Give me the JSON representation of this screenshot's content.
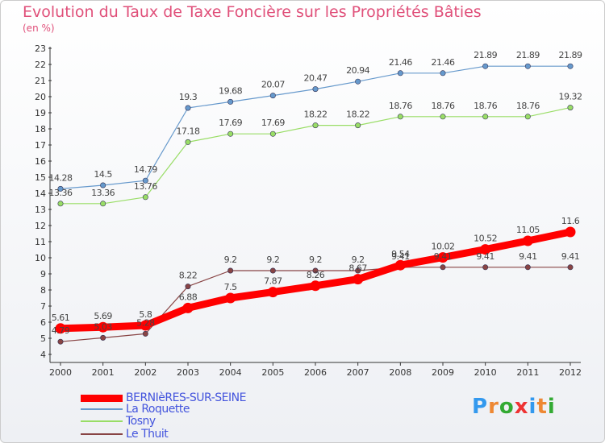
{
  "chart_data": {
    "type": "line",
    "title": "Evolution du Taux de Taxe Foncière sur les Propriétés Bâties",
    "subtitle": "(en %)",
    "x": [
      "2000",
      "2001",
      "2002",
      "2003",
      "2004",
      "2005",
      "2006",
      "2007",
      "2008",
      "2009",
      "2010",
      "2011",
      "2012"
    ],
    "ylim": [
      4,
      23
    ],
    "yticks": [
      4,
      5,
      6,
      7,
      8,
      9,
      10,
      11,
      12,
      13,
      14,
      15,
      16,
      17,
      18,
      19,
      20,
      21,
      22,
      23
    ],
    "grid": false,
    "legend_position": "bottom-left",
    "series": [
      {
        "name": "BERNIèRES-SUR-SEINE",
        "color": "#ff0000",
        "labels": [
          "5.61",
          "5.69",
          "5.8",
          "6.88",
          "7.5",
          "7.87",
          "8.26",
          "8.67",
          "9.54",
          "10.02",
          "10.52",
          "11.05",
          "11.6"
        ],
        "values": [
          5.61,
          5.69,
          5.8,
          6.88,
          7.5,
          7.87,
          8.26,
          8.67,
          9.54,
          10.02,
          10.52,
          11.05,
          11.6
        ]
      },
      {
        "name": "La Roquette",
        "color": "#6699cc",
        "labels": [
          "14.28",
          "14.5",
          "14.79",
          "19.3",
          "19.68",
          "20.07",
          "20.47",
          "20.94",
          "21.46",
          "21.46",
          "21.89",
          "21.89",
          "21.89"
        ],
        "values": [
          14.28,
          14.5,
          14.79,
          19.3,
          19.68,
          20.07,
          20.47,
          20.94,
          21.46,
          21.46,
          21.89,
          21.89,
          21.89
        ]
      },
      {
        "name": "Tosny",
        "color": "#99dd66",
        "labels": [
          "13.36",
          "13.36",
          "13.76",
          "17.18",
          "17.69",
          "17.69",
          "18.22",
          "18.22",
          "18.76",
          "18.76",
          "18.76",
          "18.76",
          "19.32"
        ],
        "values": [
          13.36,
          13.36,
          13.76,
          17.18,
          17.69,
          17.69,
          18.22,
          18.22,
          18.76,
          18.76,
          18.76,
          18.76,
          19.32
        ]
      },
      {
        "name": "Le Thuit",
        "color": "#884444",
        "labels": [
          "4.79",
          "5.03",
          "5.28",
          "8.22",
          "9.2",
          "9.2",
          "9.2",
          "9.2",
          "9.41",
          "9.41",
          "9.41",
          "9.41",
          "9.41"
        ],
        "values": [
          4.79,
          5.03,
          5.28,
          8.22,
          9.2,
          9.2,
          9.2,
          9.2,
          9.41,
          9.41,
          9.41,
          9.41,
          9.41
        ]
      }
    ]
  },
  "logo": {
    "letters": [
      "P",
      "r",
      "o",
      "x",
      "i",
      "t",
      "i"
    ],
    "colors": [
      "#3399ee",
      "#ee8833",
      "#33aa33",
      "#ee3333",
      "#3399ee",
      "#ee8833",
      "#33aa33"
    ]
  }
}
